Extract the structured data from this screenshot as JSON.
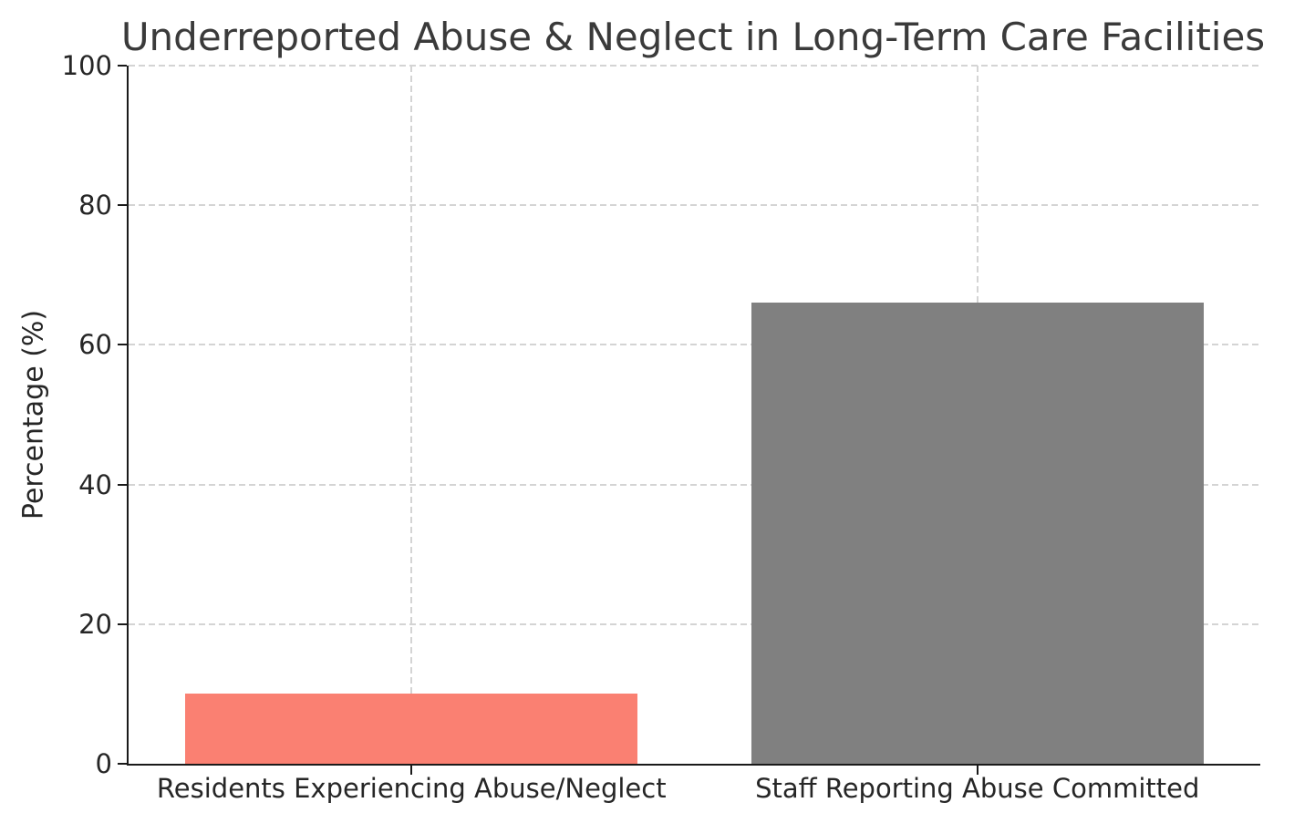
{
  "chart_data": {
    "type": "bar",
    "title": "Underreported Abuse & Neglect in Long-Term Care Facilities",
    "categories": [
      "Residents Experiencing Abuse/Neglect",
      "Staff Reporting Abuse Committed"
    ],
    "values": [
      10,
      66
    ],
    "bar_colors": [
      "#FA8072",
      "#808080"
    ],
    "xlabel": "",
    "ylabel": "Percentage (%)",
    "ylim": [
      0,
      100
    ],
    "yticks": [
      0,
      20,
      40,
      60,
      80,
      100
    ],
    "grid": "dashed",
    "grid_color": "#d4d4d4",
    "legend_position": "none",
    "bar_width_fraction": 0.8
  }
}
